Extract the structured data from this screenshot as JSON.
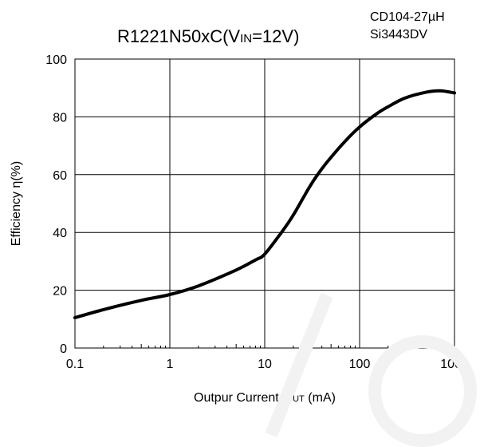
{
  "chart_data": {
    "type": "line",
    "title": "R1221N50xC(VIN=12V)",
    "title_parts": {
      "main": "R1221N50xC(V",
      "sub": "IN",
      "rest": "=12V)"
    },
    "annotations": [
      "CD104-27µH",
      "Si3443DV"
    ],
    "xlabel": "Outpur Current IOUT (mA)",
    "xlabel_parts": {
      "main": "Outpur Current I",
      "sub": "OUT",
      "rest": " (mA)"
    },
    "ylabel": "Efficiency η(%)",
    "x_scale": "log",
    "xlim": [
      0.1,
      1000
    ],
    "ylim": [
      0,
      100
    ],
    "x_ticks": [
      0.1,
      1,
      10,
      100,
      1000
    ],
    "x_tick_labels": [
      "0.1",
      "1",
      "10",
      "100",
      "1000"
    ],
    "y_ticks": [
      0,
      20,
      40,
      60,
      80,
      100
    ],
    "y_tick_labels": [
      "0",
      "20",
      "40",
      "60",
      "80",
      "100"
    ],
    "grid": true,
    "series": [
      {
        "x": [
          0.1,
          0.2,
          0.5,
          1,
          2,
          5,
          8,
          10,
          15,
          20,
          30,
          40,
          50,
          70,
          100,
          150,
          200,
          300,
          500,
          700,
          1000
        ],
        "y": [
          10.5,
          13.3,
          16.5,
          18.5,
          21.5,
          27,
          30.5,
          32.5,
          40,
          46,
          56,
          62,
          66,
          71.5,
          76.5,
          81,
          83.5,
          86.5,
          88.5,
          89,
          88.3
        ]
      }
    ],
    "line_color": "#000000"
  }
}
